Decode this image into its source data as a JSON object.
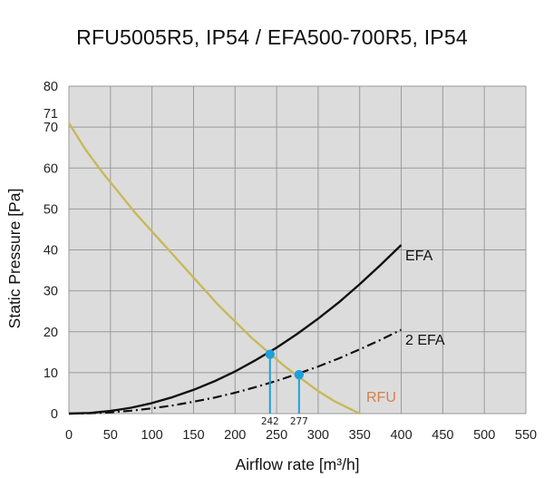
{
  "chart_data": {
    "type": "line",
    "title": "RFU5005R5, IP54 / EFA500-700R5, IP54",
    "xlabel": "Airflow rate [m³/h]",
    "ylabel": "Static Pressure [Pa]",
    "xlim": [
      0,
      550
    ],
    "ylim": [
      0,
      80
    ],
    "xticks": [
      "0",
      "50",
      "100",
      "150",
      "200",
      "250",
      "300",
      "350",
      "400",
      "450",
      "500",
      "550"
    ],
    "yticks": [
      "0",
      "10",
      "20",
      "30",
      "40",
      "50",
      "60",
      "70",
      "80"
    ],
    "extra_y_label": "71",
    "grid": true,
    "series": [
      {
        "name": "RFU",
        "color": "#c8b85a",
        "style": "solid",
        "label_color": "#d67f4c",
        "x": [
          0,
          20,
          40,
          60,
          80,
          100,
          120,
          140,
          160,
          180,
          200,
          220,
          240,
          260,
          280,
          300,
          320,
          350
        ],
        "y": [
          71,
          64.5,
          59,
          54,
          49,
          44.5,
          40,
          35.5,
          31,
          26.5,
          22.5,
          18.5,
          15,
          11.5,
          8.5,
          5.5,
          3,
          0
        ]
      },
      {
        "name": "EFA",
        "color": "#111111",
        "style": "solid",
        "label_color": "#111111",
        "x": [
          0,
          25,
          50,
          75,
          100,
          125,
          150,
          175,
          200,
          225,
          250,
          275,
          300,
          325,
          350,
          375,
          400
        ],
        "y": [
          0,
          0.16,
          0.64,
          1.45,
          2.58,
          4.03,
          5.8,
          7.9,
          10.3,
          13.1,
          16.1,
          19.5,
          23.2,
          27.2,
          31.6,
          36.3,
          41.2
        ]
      },
      {
        "name": "2 EFA",
        "color": "#111111",
        "style": "dashdot",
        "label_color": "#111111",
        "x": [
          0,
          25,
          50,
          75,
          100,
          125,
          150,
          175,
          200,
          225,
          250,
          275,
          300,
          325,
          350,
          375,
          400
        ],
        "y": [
          0,
          0.08,
          0.32,
          0.72,
          1.28,
          2.0,
          2.9,
          3.9,
          5.1,
          6.5,
          8.0,
          9.7,
          11.5,
          13.5,
          15.7,
          18.0,
          20.5
        ]
      }
    ],
    "operating_points": [
      {
        "label": "242",
        "x": 242,
        "y": 14.5
      },
      {
        "label": "277",
        "x": 277,
        "y": 9.5
      }
    ],
    "marker_color": "#1ea0dc"
  }
}
